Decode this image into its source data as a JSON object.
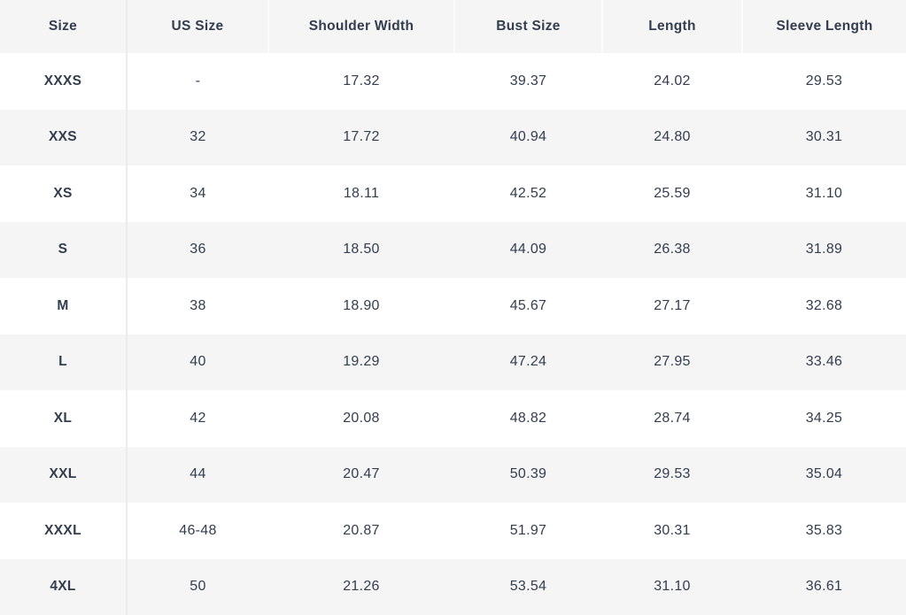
{
  "size_chart": {
    "columns": [
      "Size",
      "US Size",
      "Shoulder Width",
      "Bust Size",
      "Length",
      "Sleeve Length"
    ],
    "rows": [
      [
        "XXXS",
        "-",
        "17.32",
        "39.37",
        "24.02",
        "29.53"
      ],
      [
        "XXS",
        "32",
        "17.72",
        "40.94",
        "24.80",
        "30.31"
      ],
      [
        "XS",
        "34",
        "18.11",
        "42.52",
        "25.59",
        "31.10"
      ],
      [
        "S",
        "36",
        "18.50",
        "44.09",
        "26.38",
        "31.89"
      ],
      [
        "M",
        "38",
        "18.90",
        "45.67",
        "27.17",
        "32.68"
      ],
      [
        "L",
        "40",
        "19.29",
        "47.24",
        "27.95",
        "33.46"
      ],
      [
        "XL",
        "42",
        "20.08",
        "48.82",
        "28.74",
        "34.25"
      ],
      [
        "XXL",
        "44",
        "20.47",
        "50.39",
        "29.53",
        "35.04"
      ],
      [
        "XXXL",
        "46-48",
        "20.87",
        "51.97",
        "30.31",
        "35.83"
      ],
      [
        "4XL",
        "50",
        "21.26",
        "53.54",
        "31.10",
        "36.61"
      ]
    ],
    "colors": {
      "text": "#333d4e",
      "row_stripe": "#f5f5f6",
      "row_white": "#ffffff",
      "column_divider": "#ebebeb",
      "header_separator": "#fbfbfb"
    }
  }
}
